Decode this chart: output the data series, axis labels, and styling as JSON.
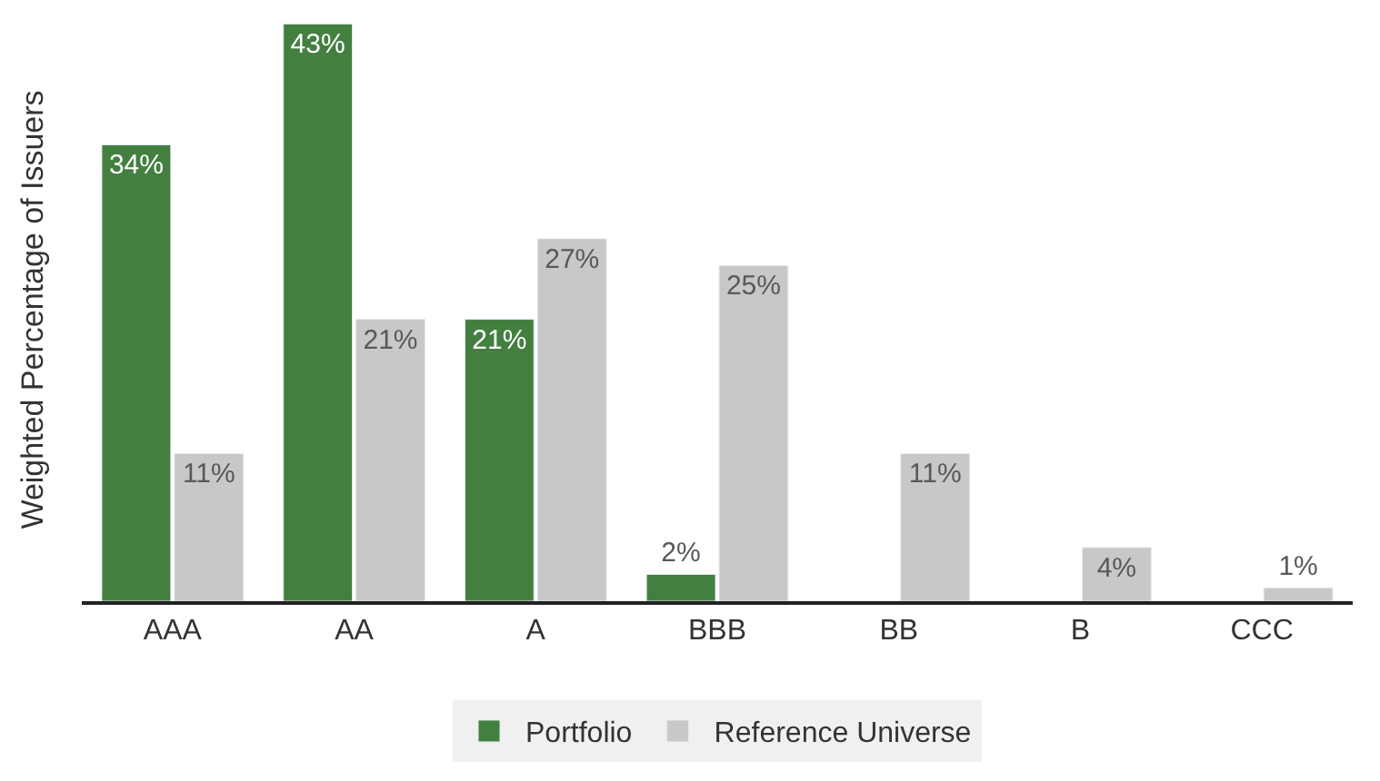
{
  "chart_data": {
    "type": "bar",
    "ylabel": "Weighted Percentage of Issuers",
    "categories": [
      "AAA",
      "AA",
      "A",
      "BBB",
      "BB",
      "B",
      "CCC"
    ],
    "series": [
      {
        "name": "Portfolio",
        "color": "#437f3f",
        "values": [
          34,
          43,
          21,
          2,
          null,
          null,
          null
        ],
        "value_labels": [
          "34%",
          "43%",
          "21%",
          "2%",
          null,
          null,
          null
        ]
      },
      {
        "name": "Reference Universe",
        "color": "#c8c8c8",
        "values": [
          11,
          21,
          27,
          25,
          11,
          4,
          1
        ],
        "value_labels": [
          "11%",
          "21%",
          "27%",
          "25%",
          "11%",
          "4%",
          "1%"
        ]
      }
    ],
    "legend": "bottom",
    "tick_labels": "x"
  }
}
